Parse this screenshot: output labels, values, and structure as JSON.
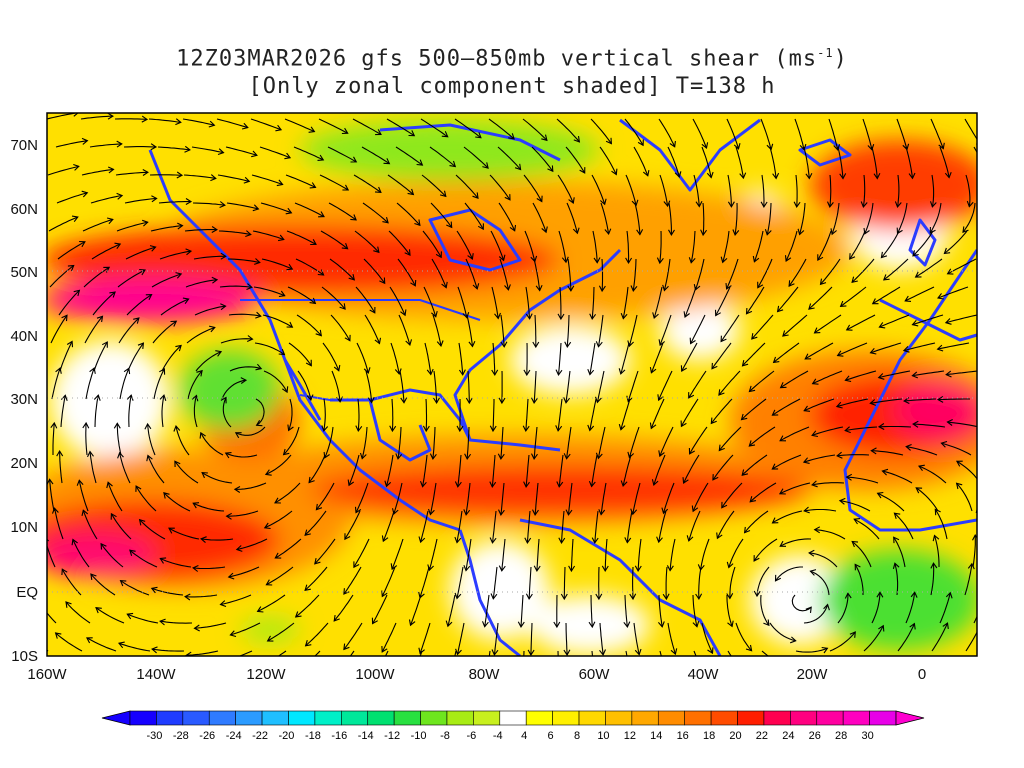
{
  "title": {
    "line1_prefix": "12Z03MAR2026 gfs 500–850mb vertical shear (ms",
    "line1_sup": "-1",
    "line1_suffix": ")",
    "line2": "[Only zonal component shaded] T=138 h"
  },
  "map": {
    "lon_range": [
      -160,
      10
    ],
    "lat_range": [
      -10,
      75
    ],
    "lon_ticks": [
      "160W",
      "140W",
      "120W",
      "100W",
      "80W",
      "60W",
      "40W",
      "20W",
      "0"
    ],
    "lat_ticks": [
      "70N",
      "60N",
      "50N",
      "40N",
      "30N",
      "20N",
      "10N",
      "EQ",
      "10S"
    ],
    "field": "zonal vertical shear (500-850mb)",
    "overlay": "streamlines",
    "coastline_color": "#2b3cff"
  },
  "colorbar": {
    "labels": [
      "-30",
      "-28",
      "-26",
      "-24",
      "-22",
      "-20",
      "-18",
      "-16",
      "-14",
      "-12",
      "-10",
      "-8",
      "-6",
      "-4",
      "4",
      "6",
      "8",
      "10",
      "12",
      "14",
      "16",
      "18",
      "20",
      "22",
      "24",
      "26",
      "28",
      "30"
    ],
    "colors": [
      "#1600ff",
      "#1f3cff",
      "#2a5aff",
      "#2f7bff",
      "#2b9bff",
      "#1fbfff",
      "#00e8ff",
      "#00f0c8",
      "#00e89a",
      "#00e070",
      "#28e040",
      "#6ee61e",
      "#a8ec14",
      "#c8f01e",
      "#ffffff",
      "#ffff00",
      "#fff000",
      "#ffd800",
      "#ffc000",
      "#ffa800",
      "#ff8c00",
      "#ff7000",
      "#ff4c00",
      "#ff1e00",
      "#ff0050",
      "#ff0080",
      "#ff00a0",
      "#ff00c0",
      "#e800e8"
    ]
  }
}
